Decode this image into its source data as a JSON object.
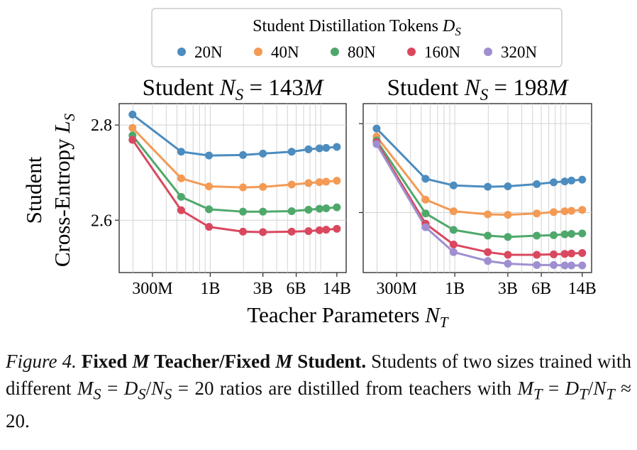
{
  "chart_data": {
    "type": "line",
    "legend": {
      "title": "Student Distillation Tokens D_S",
      "title_text": "Student Distillation Tokens ",
      "title_var": "D",
      "title_sub": "S",
      "placement": "top-center"
    },
    "series_style": [
      {
        "name": "20N",
        "color": "#4c8cbf"
      },
      {
        "name": "40N",
        "color": "#f39a55"
      },
      {
        "name": "80N",
        "color": "#4fa86b"
      },
      {
        "name": "160N",
        "color": "#d9485f"
      },
      {
        "name": "320N",
        "color": "#9f8fd1"
      }
    ],
    "xlabel_text": "Teacher Parameters ",
    "xlabel_var": "N",
    "xlabel_sub": "T",
    "ylabel_line1": "Student",
    "ylabel_line2": "Cross-Entropy ",
    "ylabel_var": "L",
    "ylabel_sub": "S",
    "x_scale": "log",
    "grid": true,
    "x_ticks": [
      {
        "v": 300000000.0,
        "label": "300M"
      },
      {
        "v": 1000000000.0,
        "label": "1B"
      },
      {
        "v": 3000000000.0,
        "label": "3B"
      },
      {
        "v": 6000000000.0,
        "label": "6B"
      },
      {
        "v": 14000000000.0,
        "label": "14B"
      }
    ],
    "x_lim": [
      150000000.0,
      17000000000.0
    ],
    "y_ticks": [
      {
        "v": 2.6,
        "label": "2.6"
      },
      {
        "v": 2.8,
        "label": "2.8"
      }
    ],
    "panels": [
      {
        "title_text": "Student ",
        "title_var": "N",
        "title_sub": "S",
        "title_value": " = 143",
        "title_unit": "M",
        "ylim": [
          2.49,
          2.845
        ],
        "x": [
          198000000.0,
          546000000.0,
          975000000.0,
          1980000000.0,
          3000000000.0,
          5460000000.0,
          7750000000.0,
          9750000000.0,
          11200000000.0,
          14000000000.0
        ],
        "series": [
          {
            "name": "20N",
            "values": [
              2.822,
              2.744,
              2.736,
              2.737,
              2.74,
              2.744,
              2.749,
              2.751,
              2.752,
              2.754
            ]
          },
          {
            "name": "40N",
            "values": [
              2.794,
              2.688,
              2.671,
              2.669,
              2.67,
              2.675,
              2.678,
              2.68,
              2.681,
              2.683
            ]
          },
          {
            "name": "80N",
            "values": [
              2.778,
              2.649,
              2.623,
              2.618,
              2.618,
              2.619,
              2.622,
              2.624,
              2.625,
              2.627
            ]
          },
          {
            "name": "160N",
            "values": [
              2.769,
              2.621,
              2.586,
              2.576,
              2.575,
              2.576,
              2.577,
              2.579,
              2.58,
              2.582
            ]
          }
        ]
      },
      {
        "title_text": "Student ",
        "title_var": "N",
        "title_sub": "S",
        "title_value": " = 198",
        "title_unit": "M",
        "ylim": [
          2.465,
          2.845
        ],
        "x": [
          198000000.0,
          546000000.0,
          975000000.0,
          1980000000.0,
          3000000000.0,
          5460000000.0,
          7750000000.0,
          9750000000.0,
          11200000000.0,
          14000000000.0
        ],
        "series": [
          {
            "name": "20N",
            "values": [
              2.789,
              2.676,
              2.661,
              2.658,
              2.659,
              2.664,
              2.668,
              2.67,
              2.672,
              2.674
            ]
          },
          {
            "name": "40N",
            "values": [
              2.771,
              2.629,
              2.603,
              2.596,
              2.595,
              2.598,
              2.601,
              2.603,
              2.604,
              2.606
            ]
          },
          {
            "name": "80N",
            "values": [
              2.762,
              2.598,
              2.561,
              2.548,
              2.545,
              2.548,
              2.549,
              2.551,
              2.552,
              2.553
            ]
          },
          {
            "name": "160N",
            "values": [
              2.758,
              2.575,
              2.528,
              2.511,
              2.505,
              2.505,
              2.506,
              2.507,
              2.508,
              2.509
            ]
          },
          {
            "name": "320N",
            "values": [
              2.754,
              2.567,
              2.511,
              2.491,
              2.485,
              2.482,
              2.482,
              2.481,
              2.481,
              2.481
            ]
          }
        ]
      }
    ]
  },
  "caption": {
    "label": "Figure 4.",
    "bold_1": " Fixed ",
    "bold_m1": "M",
    "bold_2": " Teacher/Fixed ",
    "bold_m2": "M",
    "bold_3": " Student.",
    "text_1": " Students of two sizes trained with different ",
    "math_1": "M",
    "math_1_sub": "S",
    "text_2": " = ",
    "math_2": "D",
    "math_2_sub": "S",
    "text_3": "/",
    "math_3": "N",
    "math_3_sub": "S",
    "text_4": " = 20 ratios are distilled from teachers with ",
    "math_4": "M",
    "math_4_sub": "T",
    "text_5": " = ",
    "math_5": "D",
    "math_5_sub": "T",
    "text_6": "/",
    "math_6": "N",
    "math_6_sub": "T",
    "text_7": " ≈ 20."
  }
}
